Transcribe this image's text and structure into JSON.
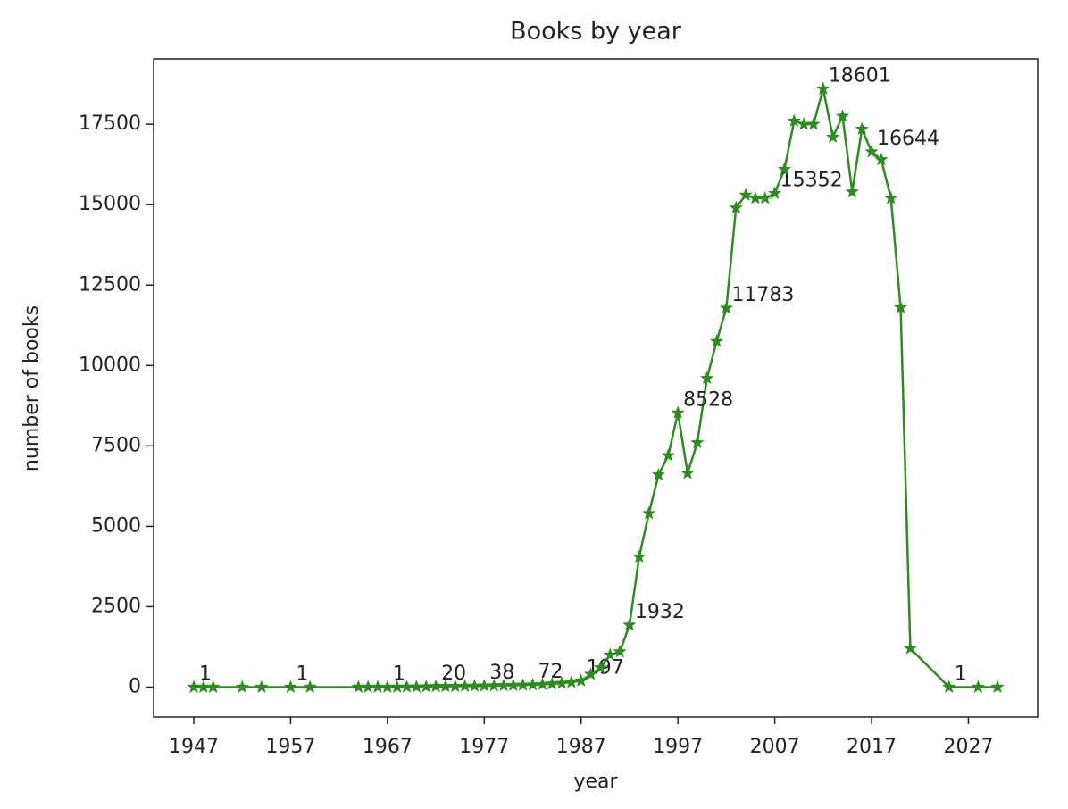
{
  "chart_data": {
    "type": "line",
    "title": "Books by year",
    "x_label": "year",
    "y_label": "number of books",
    "x": [
      1947,
      1948,
      1949,
      1952,
      1954,
      1957,
      1959,
      1964,
      1965,
      1966,
      1967,
      1968,
      1969,
      1970,
      1971,
      1972,
      1973,
      1974,
      1975,
      1976,
      1977,
      1978,
      1979,
      1980,
      1981,
      1982,
      1983,
      1984,
      1985,
      1986,
      1987,
      1988,
      1989,
      1990,
      1991,
      1992,
      1993,
      1994,
      1995,
      1996,
      1997,
      1998,
      1999,
      2000,
      2001,
      2002,
      2003,
      2004,
      2005,
      2006,
      2007,
      2008,
      2009,
      2010,
      2011,
      2012,
      2013,
      2014,
      2015,
      2016,
      2017,
      2018,
      2019,
      2020,
      2021,
      2025,
      2028,
      2030
    ],
    "values": [
      1,
      1,
      1,
      1,
      1,
      1,
      1,
      1,
      1,
      1,
      1,
      2,
      5,
      8,
      12,
      20,
      22,
      25,
      30,
      33,
      38,
      42,
      48,
      55,
      62,
      72,
      85,
      100,
      120,
      150,
      197,
      400,
      600,
      1000,
      1100,
      1932,
      4050,
      5400,
      6600,
      7200,
      8528,
      6650,
      7600,
      9600,
      10750,
      11783,
      14900,
      15300,
      15200,
      15200,
      15352,
      16100,
      17600,
      17500,
      17500,
      18601,
      17100,
      17750,
      15400,
      17350,
      16644,
      16400,
      15200,
      11800,
      1200,
      1,
      1,
      1
    ],
    "value_labels": [
      "1",
      null,
      null,
      null,
      null,
      "1",
      null,
      null,
      null,
      null,
      "1",
      null,
      null,
      null,
      null,
      "20",
      null,
      null,
      null,
      null,
      "38",
      null,
      null,
      null,
      null,
      "72",
      null,
      null,
      null,
      null,
      "197",
      null,
      null,
      null,
      null,
      "1932",
      null,
      null,
      null,
      null,
      "8528",
      null,
      null,
      null,
      null,
      "11783",
      null,
      null,
      null,
      null,
      "15352",
      null,
      null,
      null,
      null,
      "18601",
      null,
      null,
      null,
      null,
      "16644",
      null,
      null,
      null,
      null,
      "1",
      null,
      null
    ],
    "color": "#2e8b22",
    "marker": "star",
    "xlim": [
      1942.85,
      2034.15
    ],
    "xticks": [
      1947,
      1957,
      1967,
      1977,
      1987,
      1997,
      2007,
      2017,
      2027
    ],
    "ylim": [
      -930,
      19531
    ],
    "yticks": [
      0,
      2500,
      5000,
      7500,
      10000,
      12500,
      15000,
      17500
    ],
    "grid": false
  }
}
